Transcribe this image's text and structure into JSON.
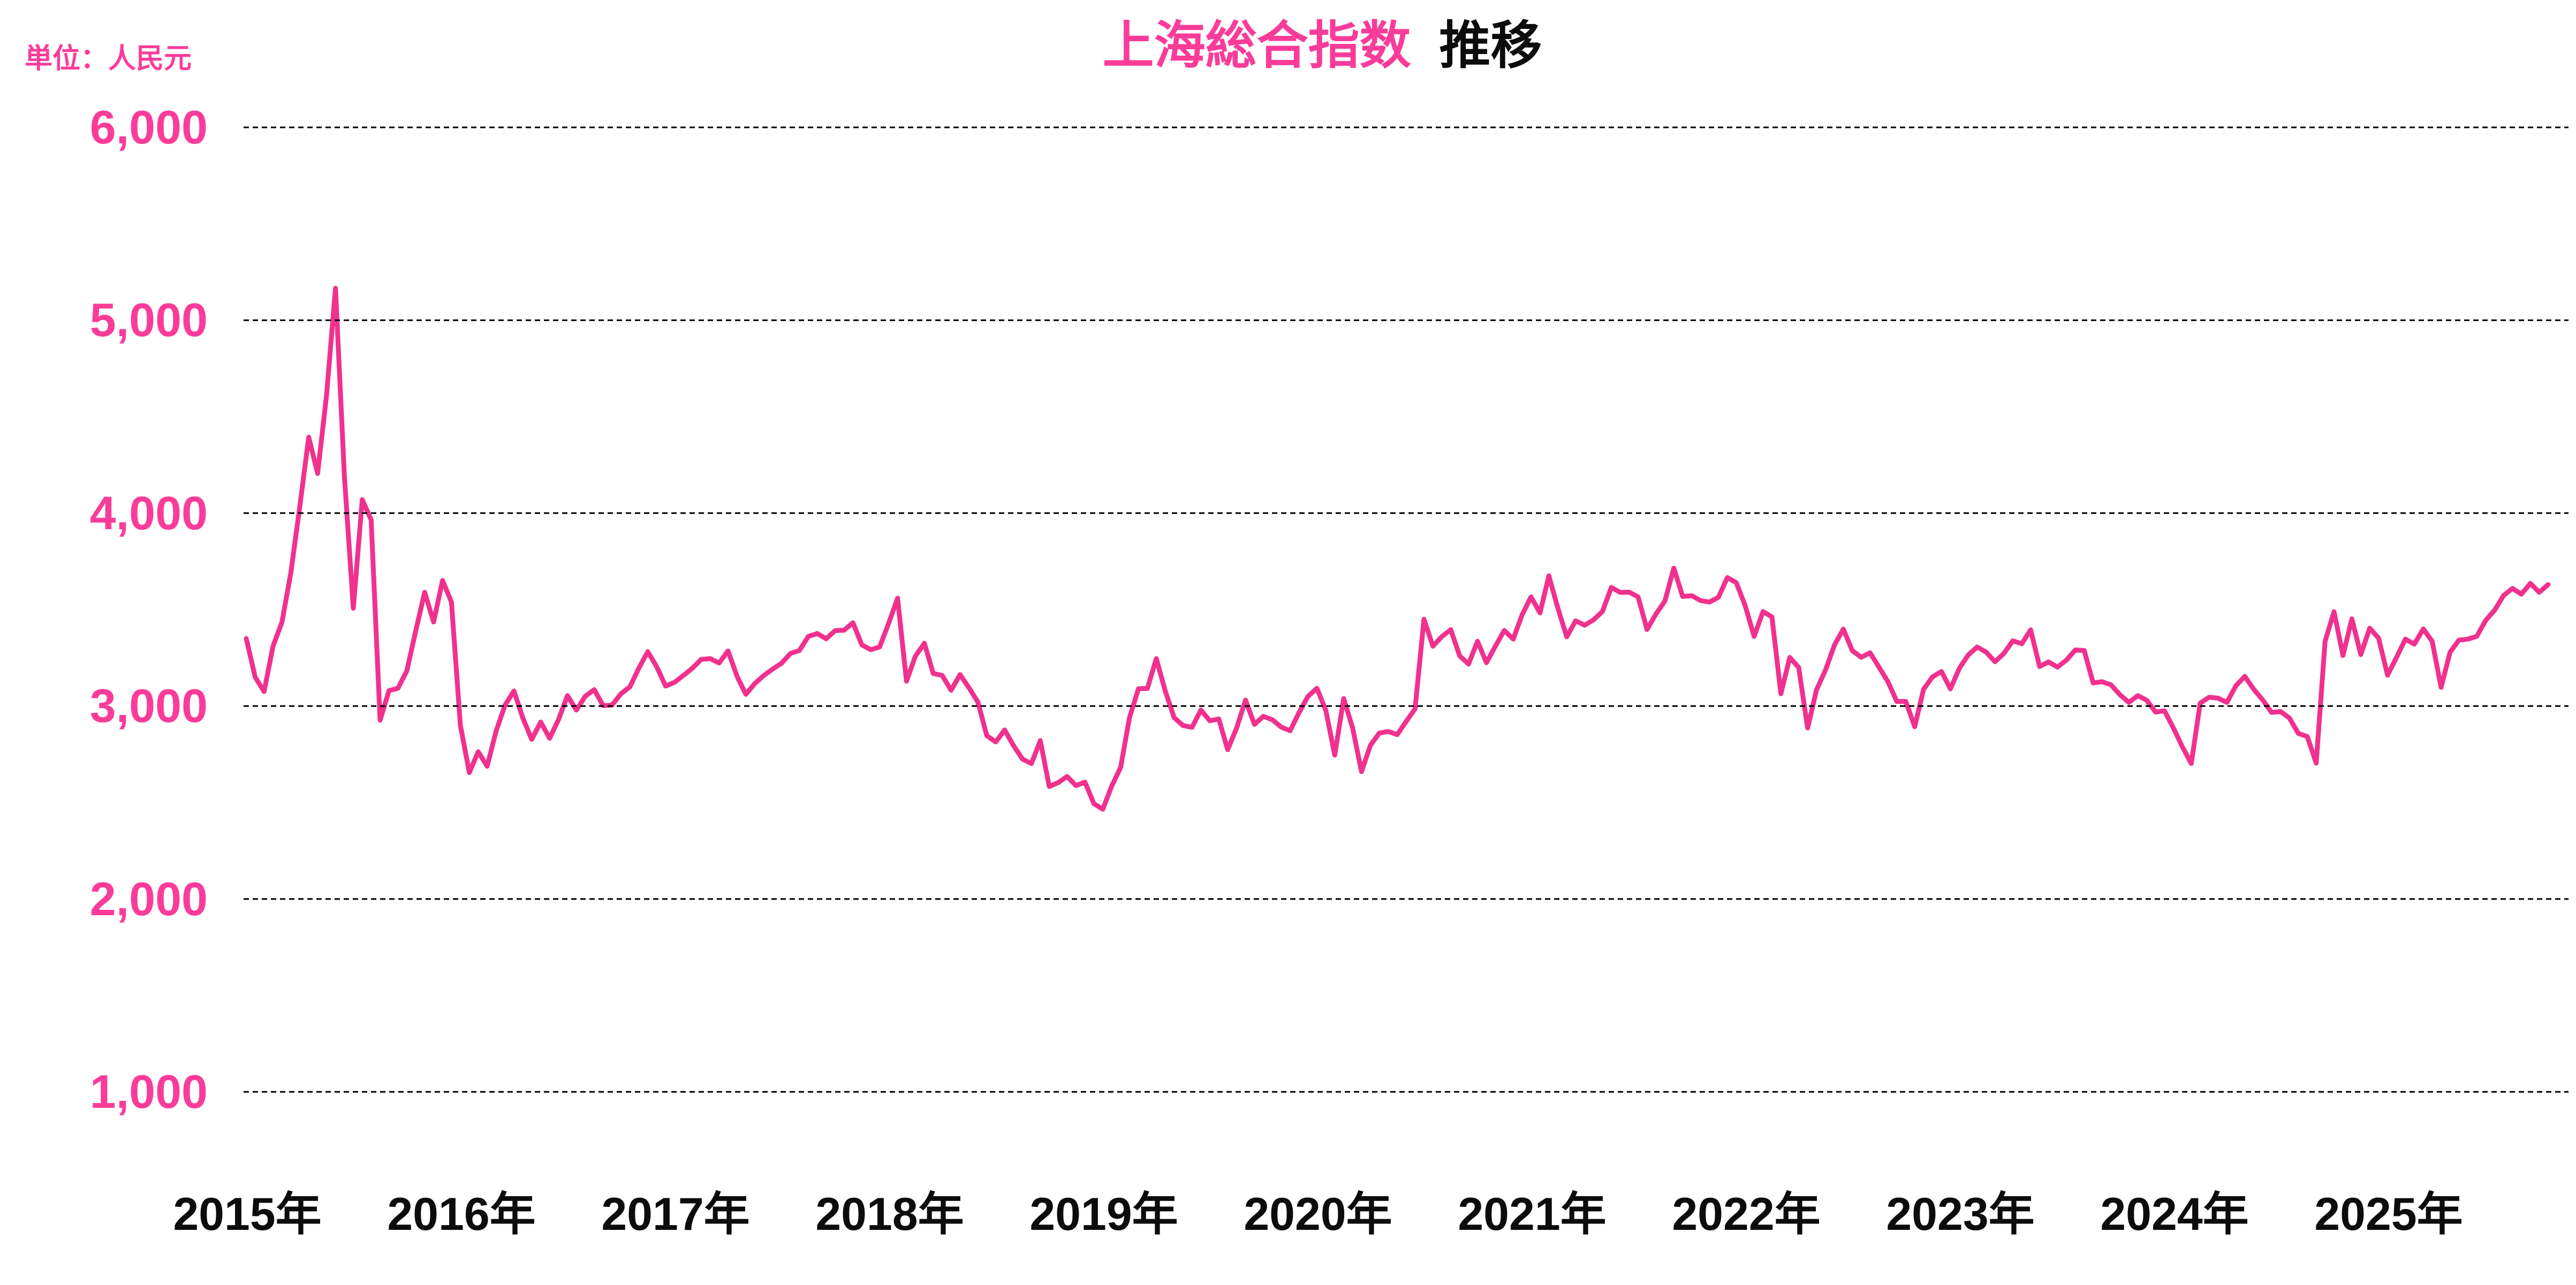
{
  "header": {
    "unit_label": "単位：人民元",
    "title_main": "上海総合指数",
    "title_sub": "推移"
  },
  "colors": {
    "line": "#F0318D",
    "pink_text": "#FA3C99",
    "grid": "#000000",
    "dark_text": "#0C0C0C",
    "background": "#FFFFFF"
  },
  "chart_data": {
    "type": "line",
    "title": "上海総合指数 推移",
    "unit": "人民元",
    "legend": "none",
    "grid": "horizontal-dashed",
    "xlabel": "",
    "ylabel": "",
    "ylim": [
      1000,
      6000
    ],
    "x_start_year": 2015,
    "points_per_year": 24,
    "x_tick_labels": [
      "2015年",
      "2016年",
      "2017年",
      "2018年",
      "2019年",
      "2020年",
      "2021年",
      "2022年",
      "2023年",
      "2024年",
      "2025年"
    ],
    "y_tick_labels": [
      "6,000",
      "5,000",
      "4,000",
      "3,000",
      "2,000",
      "1,000"
    ],
    "y_tick_values": [
      6000,
      5000,
      4000,
      3000,
      2000,
      1000
    ],
    "series": [
      {
        "name": "上海総合指数",
        "cadence": "semi-monthly closes from Jan 2015 to Oct 2025",
        "values": [
          3350,
          3150,
          3075,
          3310,
          3435,
          3691,
          4034,
          4394,
          4206,
          4611,
          5166,
          4193,
          3507,
          4070,
          3965,
          2927,
          3080,
          3092,
          3183,
          3391,
          3590,
          3436,
          3651,
          3539,
          2900,
          2655,
          2763,
          2688,
          2870,
          3004,
          3078,
          2938,
          2827,
          2917,
          2833,
          2930,
          3054,
          2979,
          3051,
          3085,
          3002,
          3005,
          3064,
          3100,
          3196,
          3282,
          3204,
          3104,
          3123,
          3159,
          3196,
          3242,
          3246,
          3223,
          3286,
          3155,
          3061,
          3117,
          3158,
          3192,
          3222,
          3273,
          3288,
          3361,
          3376,
          3349,
          3391,
          3393,
          3432,
          3317,
          3292,
          3307,
          3429,
          3559,
          3129,
          3259,
          3326,
          3169,
          3159,
          3082,
          3163,
          3095,
          3021,
          2847,
          2814,
          2876,
          2795,
          2725,
          2702,
          2821,
          2583,
          2603,
          2635,
          2588,
          2606,
          2494,
          2465,
          2585,
          2682,
          2941,
          3090,
          3091,
          3246,
          3078,
          2940,
          2899,
          2890,
          2979,
          2924,
          2933,
          2774,
          2886,
          3031,
          2905,
          2947,
          2929,
          2891,
          2872,
          2967,
          3050,
          3092,
          2977,
          2746,
          3039,
          2887,
          2660,
          2797,
          2860,
          2868,
          2852,
          2920,
          2985,
          3450,
          3310,
          3360,
          3396,
          3260,
          3218,
          3336,
          3225,
          3310,
          3392,
          3347,
          3473,
          3566,
          3483,
          3675,
          3509,
          3359,
          3442,
          3419,
          3447,
          3490,
          3615,
          3589,
          3591,
          3566,
          3397,
          3477,
          3544,
          3715,
          3568,
          3572,
          3547,
          3539,
          3564,
          3666,
          3640,
          3521,
          3361,
          3490,
          3462,
          3064,
          3252,
          3200,
          2886,
          3084,
          3186,
          3316,
          3399,
          3288,
          3253,
          3276,
          3202,
          3126,
          3024,
          3024,
          2893,
          3087,
          3151,
          3179,
          3089,
          3195,
          3265,
          3306,
          3280,
          3230,
          3273,
          3338,
          3323,
          3395,
          3205,
          3229,
          3202,
          3238,
          3291,
          3288,
          3120,
          3126,
          3110,
          3059,
          3019,
          3054,
          3030,
          2969,
          2975,
          2886,
          2789,
          2702,
          3015,
          3046,
          3041,
          3019,
          3105,
          3154,
          3087,
          3032,
          2967,
          2972,
          2938,
          2858,
          2842,
          2704,
          3336,
          3489,
          3262,
          3452,
          3267,
          3404,
          3352,
          3160,
          3252,
          3347,
          3321,
          3400,
          3336,
          3097,
          3279,
          3342,
          3347,
          3362,
          3444,
          3497,
          3573,
          3610,
          3580,
          3636,
          3590,
          3630
        ]
      }
    ]
  }
}
